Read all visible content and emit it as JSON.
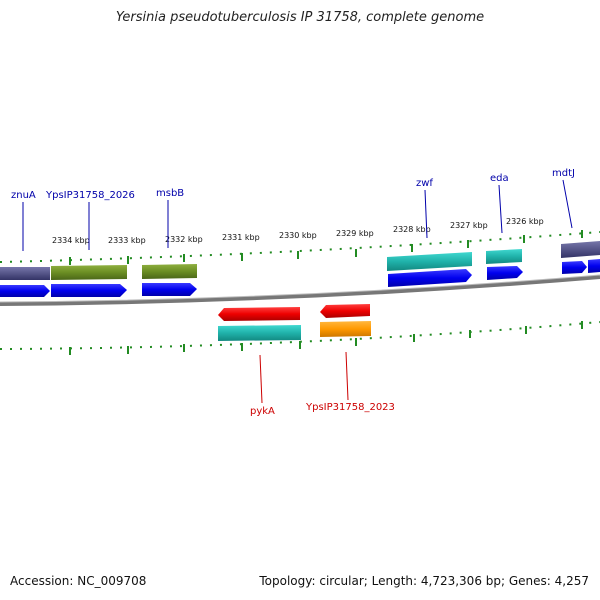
{
  "title": "Yersinia pseudotuberculosis IP 31758, complete genome",
  "footer": {
    "accession": "Accession: NC_009708",
    "summary": "Topology: circular; Length: 4,723,306 bp; Genes: 4,257"
  },
  "kbp_labels": [
    "2334 kbp",
    "2333 kbp",
    "2332 kbp",
    "2331 kbp",
    "2330 kbp",
    "2329 kbp",
    "2328 kbp",
    "2327 kbp",
    "2326 kbp"
  ],
  "gene_labels": {
    "znuA": "znuA",
    "ypsip2026": "YpsIP31758_2026",
    "msbB": "msbB",
    "zwf": "zwf",
    "eda": "eda",
    "mdtJ": "mdtJ",
    "pykA": "pykA",
    "ypsip2023": "YpsIP31758_2023"
  },
  "colors": {
    "cds_forward": "#0000ee",
    "cds_reverse": "#ee0000",
    "gene_purple": "#555588",
    "gene_olive": "#6b8e23",
    "gene_cyan": "#20b2aa",
    "gene_orange": "#ff9900",
    "backbone": "#777777",
    "ticks": "#228b22",
    "label_forward": "#0000aa",
    "label_reverse": "#cc0000"
  }
}
